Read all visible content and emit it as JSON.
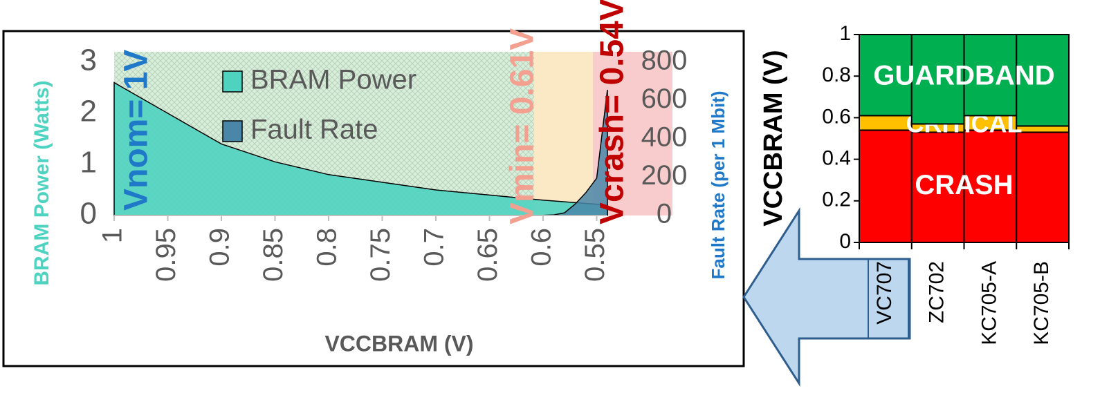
{
  "chart_data": [
    {
      "type": "area",
      "x_label": "VCCBRAM (V)",
      "y_label": "BRAM Power (Watts)",
      "y2_label": "Fault Rate (per 1 Mbit)",
      "xlim": [
        1,
        0.54
      ],
      "xticks": [
        1,
        0.95,
        0.9,
        0.85,
        0.8,
        0.75,
        0.7,
        0.65,
        0.6,
        0.55
      ],
      "ylim": [
        0,
        3
      ],
      "yticks": [
        0,
        1,
        2,
        3
      ],
      "y2lim": [
        0,
        800
      ],
      "y2ticks": [
        0,
        200,
        400,
        600,
        800
      ],
      "series": [
        {
          "name": "BRAM Power",
          "color": "#4fd3c1",
          "x": [
            1,
            0.95,
            0.9,
            0.85,
            0.8,
            0.75,
            0.7,
            0.65,
            0.6,
            0.55,
            0.54
          ],
          "values": [
            2.6,
            2.0,
            1.4,
            1.05,
            0.8,
            0.65,
            0.5,
            0.4,
            0.3,
            0.22,
            0.2
          ]
        },
        {
          "name": "Fault Rate",
          "color": "#4a86a8",
          "axis": "y2",
          "x": [
            1,
            0.61,
            0.6,
            0.59,
            0.58,
            0.57,
            0.56,
            0.55,
            0.54
          ],
          "values": [
            0,
            0,
            1,
            3,
            14,
            60,
            120,
            195,
            656
          ]
        }
      ],
      "annotations": [
        {
          "text": "Vnom= 1V",
          "color": "#1f78c8"
        },
        {
          "text": "Vmin= 0.61V",
          "color": "#f4a090"
        },
        {
          "text": "Vcrash= 0.54V",
          "color": "#c00000"
        }
      ]
    },
    {
      "type": "bar",
      "stacked": true,
      "y_label": "VCCBRAM (V)",
      "categories": [
        "VC707",
        "ZC702",
        "KC705-A",
        "KC705-B"
      ],
      "ylim": [
        0,
        1
      ],
      "yticks": [
        0,
        0.2,
        0.4,
        0.6,
        0.8,
        1
      ],
      "series": [
        {
          "name": "CRASH",
          "color": "#ff0000",
          "values": [
            0.54,
            0.53,
            0.54,
            0.53
          ]
        },
        {
          "name": "CRITICAL",
          "color": "#ffc000",
          "values": [
            0.07,
            0.04,
            0.07,
            0.03
          ]
        },
        {
          "name": "GUARDBAND",
          "color": "#00b050",
          "values": [
            0.39,
            0.43,
            0.39,
            0.44
          ]
        }
      ]
    }
  ]
}
